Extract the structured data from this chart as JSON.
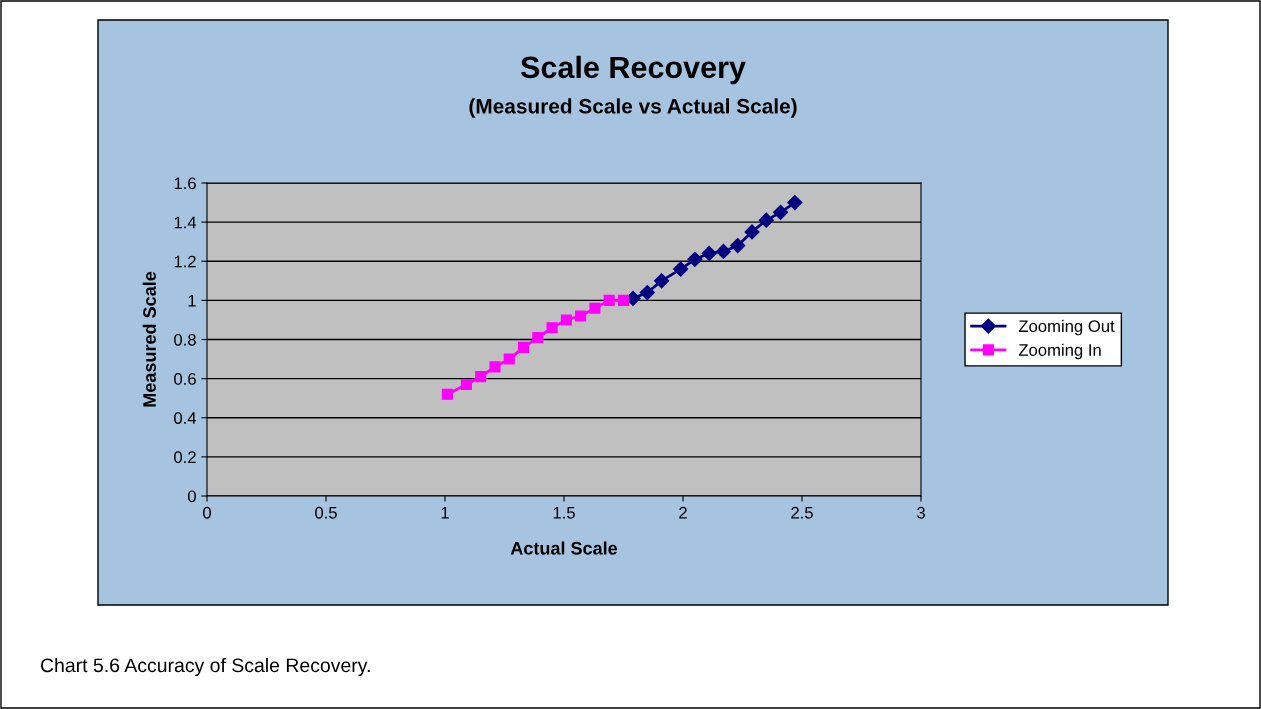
{
  "chart_data": {
    "type": "line",
    "title": "Scale Recovery",
    "subtitle": "(Measured Scale vs Actual Scale)",
    "xlabel": "Actual Scale",
    "ylabel": "Measured Scale",
    "series": [
      {
        "name": "Zooming Out",
        "color": "#000080",
        "marker": "diamond",
        "x": [
          1.79,
          1.85,
          1.91,
          1.99,
          2.05,
          2.11,
          2.17,
          2.23,
          2.29,
          2.35,
          2.41,
          2.47
        ],
        "values": [
          1.01,
          1.04,
          1.1,
          1.16,
          1.21,
          1.24,
          1.25,
          1.28,
          1.35,
          1.41,
          1.45,
          1.5
        ]
      },
      {
        "name": "Zooming In",
        "color": "#ff00ff",
        "marker": "square",
        "x": [
          1.01,
          1.09,
          1.15,
          1.21,
          1.27,
          1.33,
          1.39,
          1.45,
          1.51,
          1.57,
          1.63,
          1.69,
          1.75
        ],
        "values": [
          0.52,
          0.57,
          0.61,
          0.66,
          0.7,
          0.76,
          0.81,
          0.86,
          0.9,
          0.92,
          0.96,
          1.0,
          1.0
        ]
      }
    ],
    "xlim": [
      0,
      3
    ],
    "xticks": [
      0,
      0.5,
      1,
      1.5,
      2,
      2.5,
      3
    ],
    "ylim": [
      0,
      1.6
    ],
    "yticks": [
      0,
      0.2,
      0.4,
      0.6,
      0.8,
      1,
      1.2,
      1.4,
      1.6
    ],
    "grid": "y",
    "legend": "right",
    "annotations": [
      "Chart 5.6 Accuracy of Scale Recovery."
    ]
  }
}
